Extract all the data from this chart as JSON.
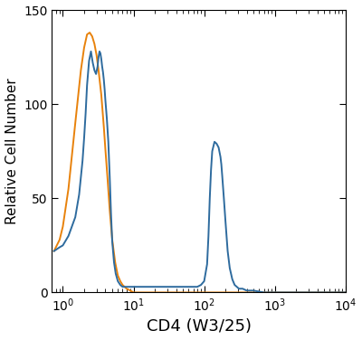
{
  "title": "",
  "xlabel": "CD4 (W3/25)",
  "ylabel": "Relative Cell Number",
  "xlim": [
    0.7,
    10000
  ],
  "ylim": [
    0,
    150
  ],
  "yticks": [
    0,
    50,
    100,
    150
  ],
  "blue_color": "#2e6b9e",
  "orange_color": "#e8820c",
  "line_width": 1.4,
  "figsize": [
    4.0,
    3.76
  ],
  "dpi": 100,
  "blue_curve": {
    "x": [
      0.75,
      0.9,
      1.0,
      1.2,
      1.5,
      1.7,
      1.9,
      2.0,
      2.1,
      2.2,
      2.35,
      2.5,
      2.65,
      2.8,
      2.95,
      3.1,
      3.2,
      3.3,
      3.4,
      3.5,
      3.6,
      3.7,
      3.8,
      3.9,
      4.0,
      4.1,
      4.2,
      4.4,
      4.6,
      4.8,
      5.0,
      5.3,
      5.6,
      6.0,
      6.5,
      7.0,
      7.5,
      8.0,
      9.0,
      10.0,
      12.0,
      15.0,
      18.0,
      20.0,
      25.0,
      30.0,
      40.0,
      50.0,
      60.0,
      70.0,
      80.0,
      90.0,
      100.0,
      110.0,
      115.0,
      120.0,
      125.0,
      130.0,
      140.0,
      150.0,
      160.0,
      170.0,
      175.0,
      180.0,
      190.0,
      200.0,
      215.0,
      230.0,
      250.0,
      270.0,
      290.0,
      310.0,
      350.0,
      400.0,
      500.0,
      700.0,
      1000.0,
      2000.0,
      5000.0,
      10000.0
    ],
    "y": [
      22,
      24,
      25,
      30,
      40,
      52,
      70,
      82,
      95,
      110,
      123,
      128,
      122,
      118,
      116,
      120,
      125,
      128,
      127,
      124,
      120,
      117,
      113,
      108,
      102,
      97,
      92,
      80,
      62,
      42,
      27,
      16,
      10,
      6,
      4,
      3,
      3,
      3,
      3,
      3,
      3,
      3,
      3,
      3,
      3,
      3,
      3,
      3,
      3,
      3,
      3,
      4,
      6,
      15,
      30,
      50,
      65,
      75,
      80,
      79,
      77,
      72,
      68,
      62,
      50,
      38,
      22,
      13,
      7,
      4,
      3,
      2,
      2,
      1,
      1,
      0,
      0,
      0,
      0,
      0
    ]
  },
  "orange_curve": {
    "x": [
      0.75,
      0.9,
      1.0,
      1.2,
      1.5,
      1.8,
      2.0,
      2.2,
      2.4,
      2.6,
      2.8,
      3.0,
      3.2,
      3.5,
      3.8,
      4.0,
      4.3,
      4.6,
      5.0,
      5.5,
      6.0,
      6.5,
      7.0,
      8.0,
      9.0,
      10.0,
      12.0,
      15.0,
      20.0,
      30.0,
      50.0,
      100.0,
      300.0,
      1000.0,
      10000.0
    ],
    "y": [
      22,
      28,
      35,
      55,
      90,
      118,
      130,
      137,
      138,
      136,
      132,
      126,
      118,
      105,
      88,
      76,
      60,
      44,
      28,
      16,
      9,
      6,
      4,
      2,
      1,
      0,
      0,
      0,
      0,
      0,
      0,
      0,
      0,
      0,
      0
    ]
  }
}
